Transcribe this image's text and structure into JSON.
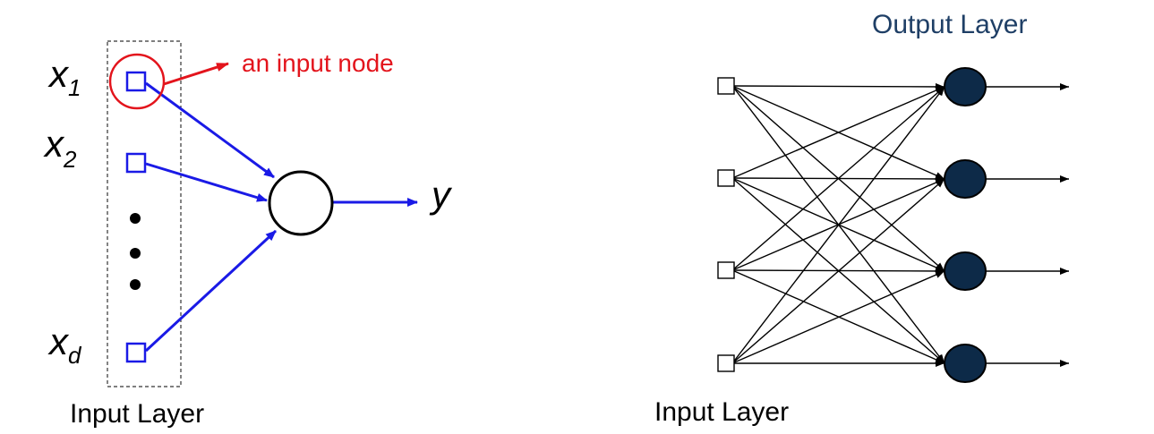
{
  "left_diagram": {
    "inputs": [
      {
        "base": "x",
        "sub": "1"
      },
      {
        "base": "x",
        "sub": "2"
      },
      {
        "base": "x",
        "sub": "d"
      }
    ],
    "output_label": "y",
    "callout": "an input node",
    "input_layer_label": "Input Layer"
  },
  "right_diagram": {
    "output_layer_label": "Output Layer",
    "input_layer_label": "Input Layer",
    "input_count": 4,
    "output_count": 4
  },
  "colors": {
    "edge_blue": "#1a1ae6",
    "callout_red": "#e3141c",
    "output_title": "#1f3f66",
    "output_node_fill": "#0d2a48",
    "black": "#000000"
  }
}
